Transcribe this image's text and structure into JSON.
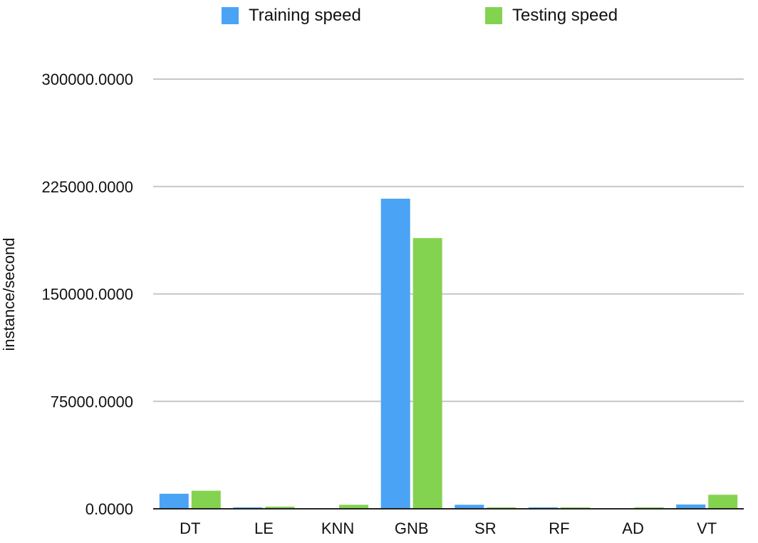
{
  "chart_data": {
    "type": "bar",
    "title": "",
    "xlabel": "",
    "ylabel": "instance/second",
    "ylim": [
      0,
      300000
    ],
    "yticks": [
      "0.0000",
      "75000.0000",
      "150000.0000",
      "225000.0000",
      "300000.0000"
    ],
    "ytick_values": [
      0,
      75000,
      150000,
      225000,
      300000
    ],
    "grid": true,
    "legend_position": "top",
    "categories": [
      "DT",
      "LE",
      "KNN",
      "GNB",
      "SR",
      "RF",
      "AD",
      "VT"
    ],
    "series": [
      {
        "name": "Training speed",
        "color": "#4aa3f5",
        "values": [
          10500,
          800,
          0,
          216500,
          2800,
          200,
          0,
          3000
        ]
      },
      {
        "name": "Testing speed",
        "color": "#84d350",
        "values": [
          12600,
          1500,
          2800,
          189000,
          900,
          200,
          900,
          9800
        ]
      }
    ]
  }
}
